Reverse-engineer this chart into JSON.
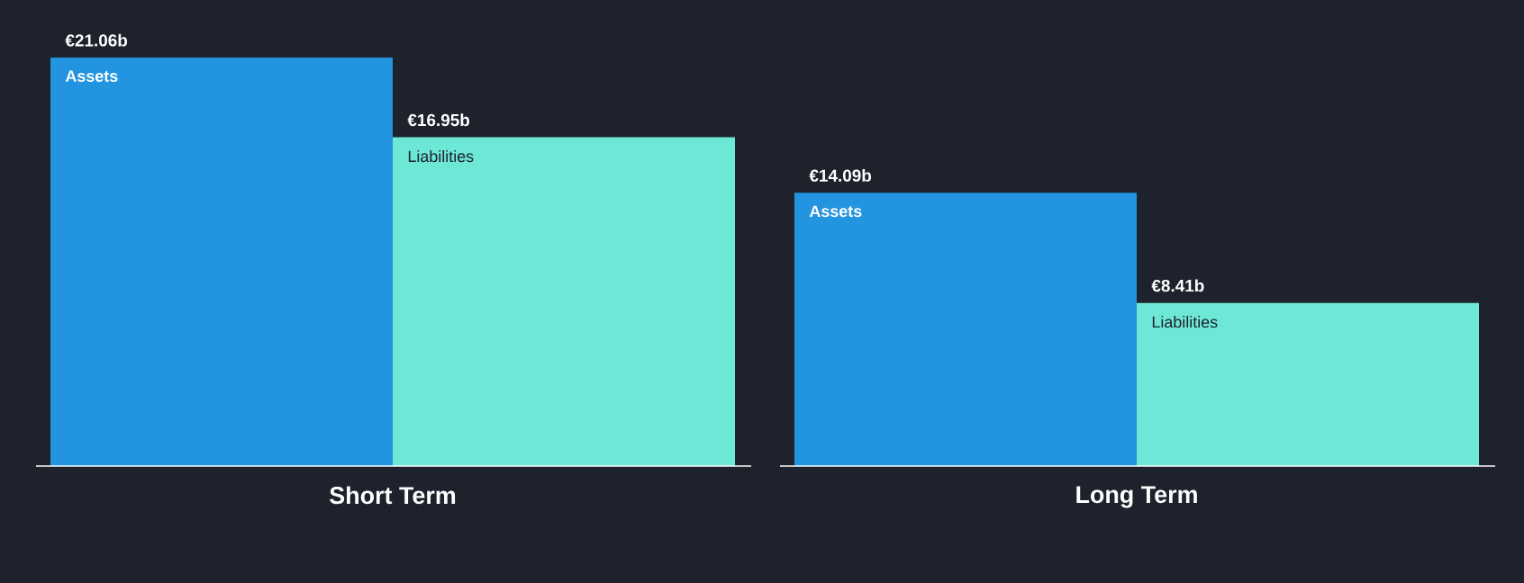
{
  "chart_data": {
    "type": "bar",
    "categories": [
      "Short Term",
      "Long Term"
    ],
    "series": [
      {
        "name": "Assets",
        "color": "#2394e0",
        "values": [
          21.06,
          14.09
        ],
        "value_labels": [
          "€21.06b",
          "€14.09b"
        ]
      },
      {
        "name": "Liabilities",
        "color": "#6ee8d6",
        "values": [
          16.95,
          8.41
        ],
        "value_labels": [
          "€16.95b",
          "€8.41b"
        ]
      }
    ]
  }
}
